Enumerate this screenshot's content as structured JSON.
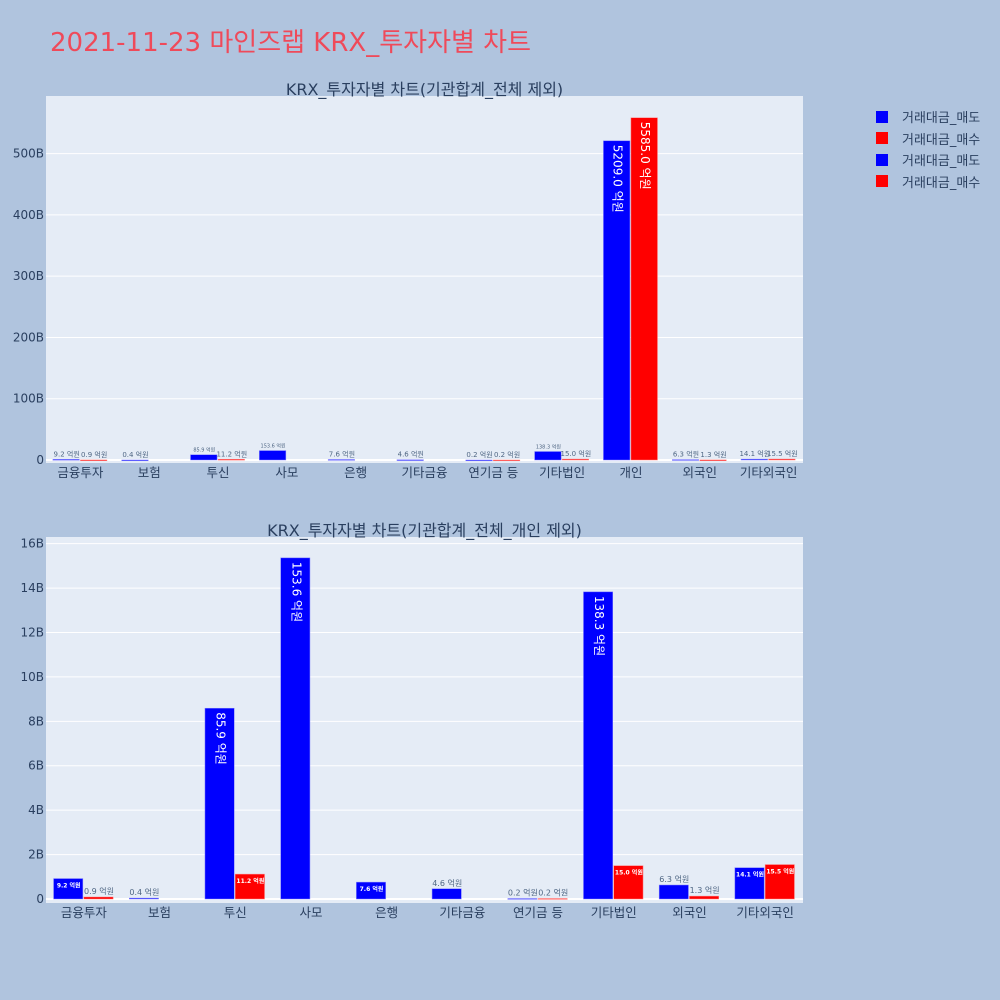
{
  "title": "2021-11-23 마인즈랩 KRX_투자자별 차트",
  "colors": {
    "sell": "#0000ff",
    "buy": "#ff0000",
    "plot_bg": "#e5ecf6",
    "page_bg": "#b0c4de"
  },
  "legend": [
    "거래대금_매도",
    "거래대금_매수",
    "거래대금_매도",
    "거래대금_매수"
  ],
  "chart_data": [
    {
      "type": "bar",
      "title": "KRX_투자자별 차트(기관합계_전체 제외)",
      "categories": [
        "금융투자",
        "보험",
        "투신",
        "사모",
        "은행",
        "기타금융",
        "연기금 등",
        "기타법인",
        "개인",
        "외국인",
        "기타외국인"
      ],
      "series": [
        {
          "name": "거래대금_매도",
          "values_eok": [
            9.2,
            0.4,
            85.9,
            153.6,
            7.6,
            4.6,
            0.2,
            138.3,
            5209.0,
            6.3,
            14.1
          ],
          "labels": [
            "9.2 억원",
            "0.4 억원",
            "85.9 억원",
            "153.6 억원",
            "7.6 억원",
            "4.6 억원",
            "0.2 억원",
            "138.3 억원",
            "5209.0 억원",
            "6.3 억원",
            "14.1 억원"
          ]
        },
        {
          "name": "거래대금_매수",
          "values_eok": [
            0.9,
            null,
            11.2,
            null,
            null,
            null,
            0.2,
            15.0,
            5585.0,
            1.3,
            15.5
          ],
          "labels": [
            "0.9 억원",
            "",
            "11.2 억원",
            "",
            "",
            "",
            "0.2 억원",
            "15.0 억원",
            "5585.0 억원",
            "1.3 억원",
            "15.5 억원"
          ]
        }
      ],
      "yticks": [
        "0",
        "100B",
        "200B",
        "300B",
        "400B",
        "500B"
      ],
      "ytick_values": [
        0,
        100,
        200,
        300,
        400,
        500
      ],
      "ylim_B": [
        0,
        594
      ],
      "grid": true
    },
    {
      "type": "bar",
      "title": "KRX_투자자별 차트(기관합계_전체_개인 제외)",
      "categories": [
        "금융투자",
        "보험",
        "투신",
        "사모",
        "은행",
        "기타금융",
        "연기금 등",
        "기타법인",
        "외국인",
        "기타외국인"
      ],
      "series": [
        {
          "name": "거래대금_매도",
          "values_eok": [
            9.2,
            0.4,
            85.9,
            153.6,
            7.6,
            4.6,
            0.2,
            138.3,
            6.3,
            14.1
          ],
          "labels": [
            "9.2 억원",
            "0.4 억원",
            "85.9 억원",
            "153.6 억원",
            "7.6 억원",
            "4.6 억원",
            "0.2 억원",
            "138.3 억원",
            "6.3 억원",
            "14.1 억원"
          ]
        },
        {
          "name": "거래대금_매수",
          "values_eok": [
            0.9,
            null,
            11.2,
            null,
            null,
            null,
            0.2,
            15.0,
            1.3,
            15.5
          ],
          "labels": [
            "0.9 억원",
            "",
            "11.2 억원",
            "",
            "",
            "",
            "0.2 억원",
            "15.0 억원",
            "1.3 억원",
            "15.5 억원"
          ]
        }
      ],
      "yticks": [
        "0",
        "2B",
        "4B",
        "6B",
        "8B",
        "10B",
        "12B",
        "14B",
        "16B"
      ],
      "ytick_values": [
        0,
        2,
        4,
        6,
        8,
        10,
        12,
        14,
        16
      ],
      "ylim_B": [
        0,
        16.3
      ],
      "grid": true
    }
  ]
}
